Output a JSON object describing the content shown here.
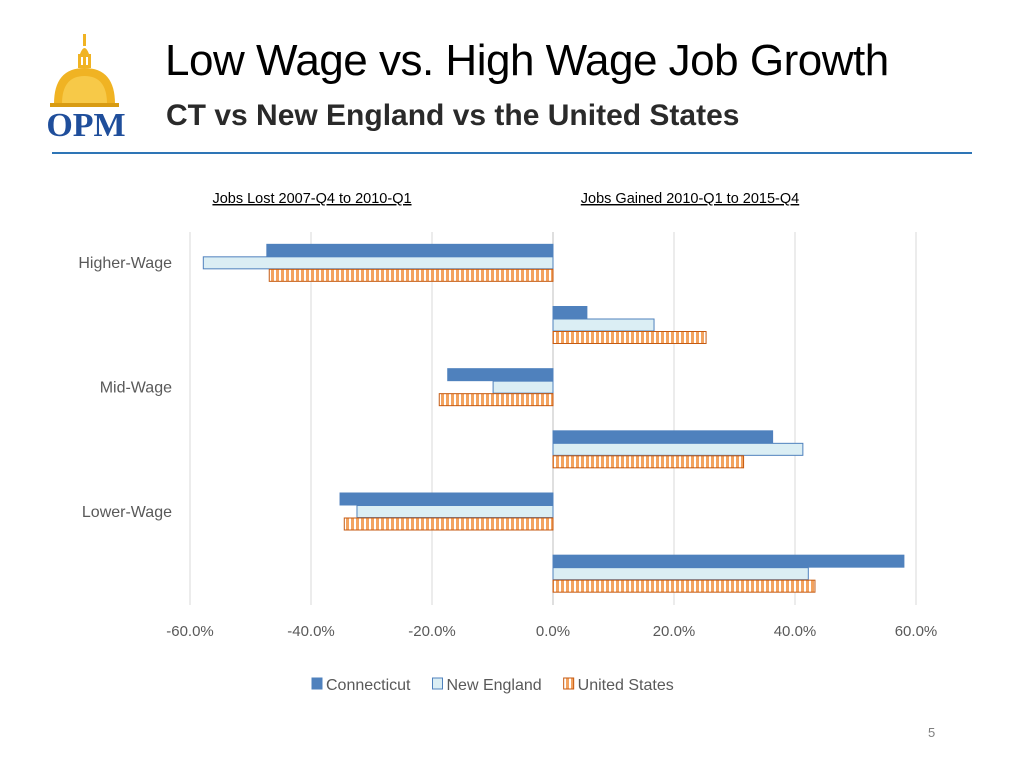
{
  "slide": {
    "title": "Low Wage vs. High Wage Job Growth",
    "subtitle": "CT vs New England vs the United States",
    "page_number": "5",
    "logo_text": "OPM"
  },
  "colors": {
    "connecticut": "#4f81bd",
    "new_england_fill": "#dbeef4",
    "new_england_stroke": "#4f81bd",
    "united_states_fill": "#f3a35f",
    "united_states_stroke": "#c55a11",
    "rule": "#2e75b6",
    "logo_blue": "#1f4e9b",
    "logo_gold": "#f0b323"
  },
  "chart_data": {
    "type": "bar",
    "orientation": "horizontal",
    "annotations": [
      "Jobs Lost 2007-Q4 to 2010-Q1",
      "Jobs Gained 2010-Q1 to 2015-Q4"
    ],
    "categories": [
      "Higher-Wage",
      "Mid-Wage",
      "Lower-Wage"
    ],
    "periods": [
      "Jobs Lost 2007-Q4 to 2010-Q1",
      "Jobs Gained 2010-Q1 to 2015-Q4"
    ],
    "series": [
      {
        "name": "Connecticut",
        "values": [
          [
            -47.3,
            5.6
          ],
          [
            -17.4,
            36.3
          ],
          [
            -35.2,
            58.0
          ]
        ]
      },
      {
        "name": "New England",
        "values": [
          [
            -57.8,
            16.7
          ],
          [
            -9.9,
            41.3
          ],
          [
            -32.4,
            42.2
          ]
        ]
      },
      {
        "name": "United States",
        "values": [
          [
            -46.9,
            25.3
          ],
          [
            -18.8,
            31.5
          ],
          [
            -34.5,
            43.3
          ]
        ]
      }
    ],
    "x_ticks": [
      "-60.0%",
      "-40.0%",
      "-20.0%",
      "0.0%",
      "20.0%",
      "40.0%",
      "60.0%"
    ],
    "xlim": [
      -60,
      60
    ],
    "grid": true,
    "legend_position": "bottom"
  }
}
